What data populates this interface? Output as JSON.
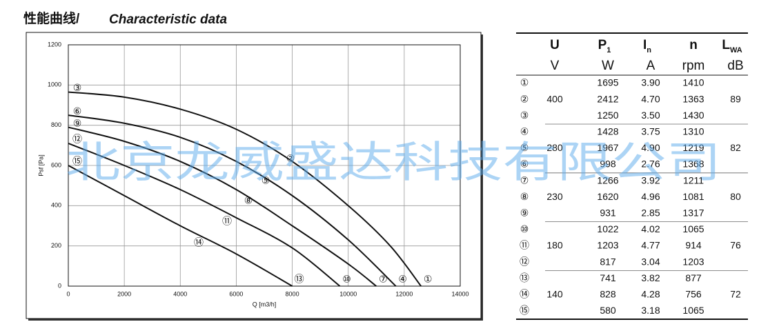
{
  "title": {
    "cn": "性能曲线/",
    "en": "Characteristic data"
  },
  "watermark": "北京龙威盛达科技有限公司",
  "chart_data": {
    "type": "line",
    "x_label": "Q [m3/h]",
    "y_label": "Psf [Pa]",
    "xlim": [
      0,
      14000
    ],
    "ylim": [
      0,
      1200
    ],
    "xticks": [
      0,
      2000,
      4000,
      6000,
      8000,
      10000,
      12000,
      14000
    ],
    "yticks": [
      0,
      200,
      400,
      600,
      800,
      1000,
      1200
    ],
    "grid": true,
    "color": "#111111",
    "series": [
      {
        "labels": [
          "③",
          "②",
          "①"
        ],
        "x": [
          0,
          2000,
          4000,
          6000,
          8000,
          10000,
          11500,
          12600
        ],
        "values": [
          965,
          940,
          880,
          780,
          620,
          400,
          200,
          0
        ]
      },
      {
        "labels": [
          "⑥",
          "⑤",
          "④"
        ],
        "x": [
          0,
          2000,
          4000,
          6000,
          8000,
          10000,
          11700
        ],
        "values": [
          850,
          810,
          740,
          620,
          450,
          230,
          0
        ]
      },
      {
        "labels": [
          "⑨",
          "⑧",
          "⑦"
        ],
        "x": [
          0,
          2000,
          4000,
          6000,
          8000,
          10000,
          11000
        ],
        "values": [
          790,
          720,
          620,
          480,
          300,
          110,
          0
        ]
      },
      {
        "labels": [
          "⑫",
          "⑪",
          "⑩"
        ],
        "x": [
          0,
          2000,
          4000,
          6000,
          8000,
          9700
        ],
        "values": [
          710,
          600,
          480,
          340,
          190,
          0
        ]
      },
      {
        "labels": [
          "⑮",
          "⑭",
          "⑬"
        ],
        "x": [
          0,
          2000,
          4000,
          6000,
          8000
        ],
        "values": [
          600,
          450,
          300,
          160,
          0
        ]
      }
    ]
  },
  "table": {
    "header": [
      {
        "main": "U",
        "unit": "V"
      },
      {
        "main": "P",
        "sub": "1",
        "unit": "W"
      },
      {
        "main": "I",
        "sub": "n",
        "unit": "A"
      },
      {
        "main": "n",
        "unit": "rpm"
      },
      {
        "main": "L",
        "sub": "WA",
        "unit": "dB"
      }
    ],
    "groups": [
      {
        "voltage": "400",
        "noise": "89",
        "rows": [
          [
            "①",
            "1695",
            "3.90",
            "1410"
          ],
          [
            "②",
            "2412",
            "4.70",
            "1363"
          ],
          [
            "③",
            "1250",
            "3.50",
            "1430"
          ]
        ]
      },
      {
        "voltage": "280",
        "noise": "82",
        "rows": [
          [
            "④",
            "1428",
            "3.75",
            "1310"
          ],
          [
            "⑤",
            "1967",
            "4.90",
            "1219"
          ],
          [
            "⑥",
            "998",
            "2.76",
            "1368"
          ]
        ]
      },
      {
        "voltage": "230",
        "noise": "80",
        "rows": [
          [
            "⑦",
            "1266",
            "3.92",
            "1211"
          ],
          [
            "⑧",
            "1620",
            "4.96",
            "1081"
          ],
          [
            "⑨",
            "931",
            "2.85",
            "1317"
          ]
        ]
      },
      {
        "voltage": "180",
        "noise": "76",
        "rows": [
          [
            "⑩",
            "1022",
            "4.02",
            "1065"
          ],
          [
            "⑪",
            "1203",
            "4.77",
            "914"
          ],
          [
            "⑫",
            "817",
            "3.04",
            "1203"
          ]
        ]
      },
      {
        "voltage": "140",
        "noise": "72",
        "rows": [
          [
            "⑬",
            "741",
            "3.82",
            "877"
          ],
          [
            "⑭",
            "828",
            "4.28",
            "756"
          ],
          [
            "⑮",
            "580",
            "3.18",
            "1065"
          ]
        ]
      }
    ]
  }
}
